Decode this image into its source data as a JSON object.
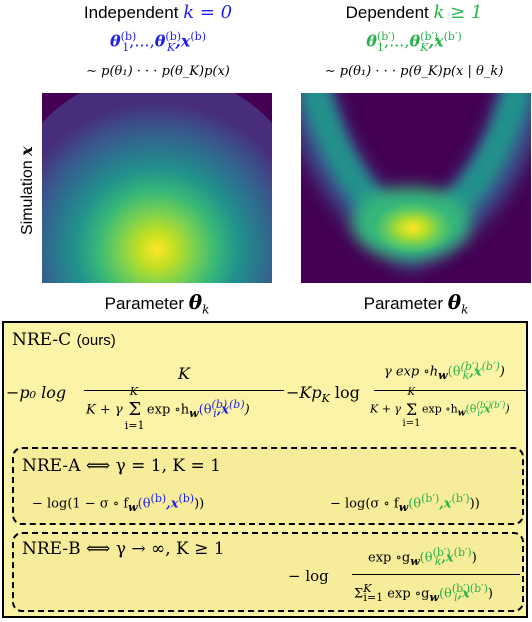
{
  "panels": {
    "left": {
      "title_plain": "Independent",
      "title_math": "k = 0",
      "samples_a": "θ",
      "samples_b": "(b)",
      "samples_c": "1",
      "samples_d": ",...,",
      "samples_e": "θ",
      "samples_f": "(b)",
      "samples_g": "K",
      "samples_h": ",x",
      "samples_i": "(b)",
      "dist": "∼ p(θ₁) · · · p(θ_K)p(x)",
      "xlabel_text": "Parameter",
      "xlabel_math": "θ",
      "xlabel_sub": "k"
    },
    "right": {
      "title_plain": "Dependent",
      "title_math": "k ≥ 1",
      "samples_a": "θ",
      "samples_b": "(b′)",
      "samples_c": "1",
      "samples_d": ",...,",
      "samples_e": "θ",
      "samples_f": "(b′)",
      "samples_g": "K",
      "samples_h": ",x",
      "samples_i": "(b′)",
      "dist": "∼ p(θ₁) · · · p(θ_K)p(x | θ_k)",
      "xlabel_text": "Parameter",
      "xlabel_math": "θ",
      "xlabel_sub": "k"
    },
    "ylabel_text": "Simulation",
    "ylabel_math": "x"
  },
  "nre_c": {
    "title": "NRE-C",
    "suffix": "(ours)",
    "term1_prefix": "−p₀ log",
    "term1_num": "K",
    "term1_den_a": "K + γ",
    "term1_sum_top": "K",
    "term1_sum_sym": "Σ",
    "term1_sum_bot": "i=1",
    "term1_den_b": "exp ∘h",
    "term1_den_w": "w",
    "term1_den_c": "(θ",
    "term1_den_d": "(b)",
    "term1_den_e": "i",
    "term1_den_f": ",x",
    "term1_den_g": "(b)",
    "term1_den_h": ")",
    "term2_prefix": "−Kp",
    "term2_prefix_sub": "K",
    "term2_log": "log",
    "term2_num_a": "γ exp ∘h",
    "term2_num_w": "w",
    "term2_num_b": "(θ",
    "term2_num_c": "(b′)",
    "term2_num_d": "k",
    "term2_num_e": ",x",
    "term2_num_f": "(b′)",
    "term2_num_g": ")",
    "term2_den_a": "K + γ",
    "term2_sum_top": "K",
    "term2_sum_sym": "Σ",
    "term2_sum_bot": "i=1",
    "term2_den_b": "exp ∘h",
    "term2_den_w": "w",
    "term2_den_c": "(θ",
    "term2_den_d": "(b′)",
    "term2_den_e": "i",
    "term2_den_f": ",x",
    "term2_den_g": "(b′)",
    "term2_den_h": ")"
  },
  "nre_a": {
    "title": "NRE-A  ⟺  γ = 1, K = 1",
    "left_a": "− log(1 − σ ∘ f",
    "left_w": "w",
    "left_b": "(θ",
    "left_c": "(b)",
    "left_d": ",x",
    "left_e": "(b)",
    "left_f": "))",
    "right_a": "− log(σ ∘ f",
    "right_w": "w",
    "right_b": "(θ",
    "right_c": "(b′)",
    "right_d": ",x",
    "right_e": "(b′)",
    "right_f": "))"
  },
  "nre_b": {
    "title": "NRE-B  ⟺  γ → ∞, K ≥ 1",
    "prefix": "− log",
    "num_a": "exp ∘g",
    "num_w": "w",
    "num_b": "(θ",
    "num_c": "(b′)",
    "num_d": "k",
    "num_e": ",x",
    "num_f": "(b′)",
    "num_g": ")",
    "den_a": "Σ",
    "den_sup": "K",
    "den_sub": "i=1",
    "den_b": " exp ∘g",
    "den_w": "w",
    "den_c": "(θ",
    "den_d": "(b′)",
    "den_e": "i",
    "den_f": ",x",
    "den_g": "(b′)",
    "den_h": ")"
  },
  "colors": {
    "blue": "#1f1ff0",
    "green": "#27b34a",
    "box_fill": "#fbf3a6",
    "heat_low": "#440154",
    "heat_high": "#fde725"
  }
}
